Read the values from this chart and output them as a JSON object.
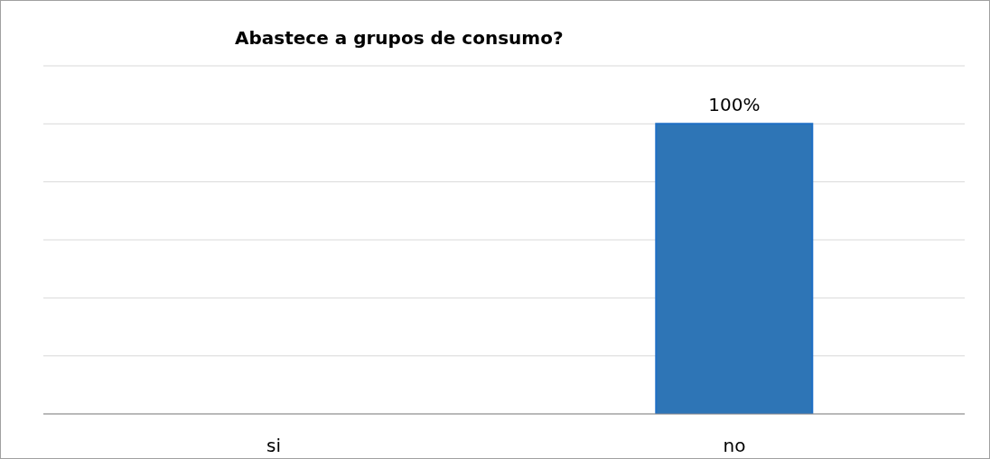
{
  "chart_data": {
    "type": "bar",
    "title": "Abastece a grupos de consumo?",
    "categories": [
      "si",
      "no"
    ],
    "values": [
      0,
      100
    ],
    "value_labels": [
      null,
      "100%"
    ],
    "color": "#2e75b6",
    "grid": "y",
    "tick_labels": "x"
  }
}
